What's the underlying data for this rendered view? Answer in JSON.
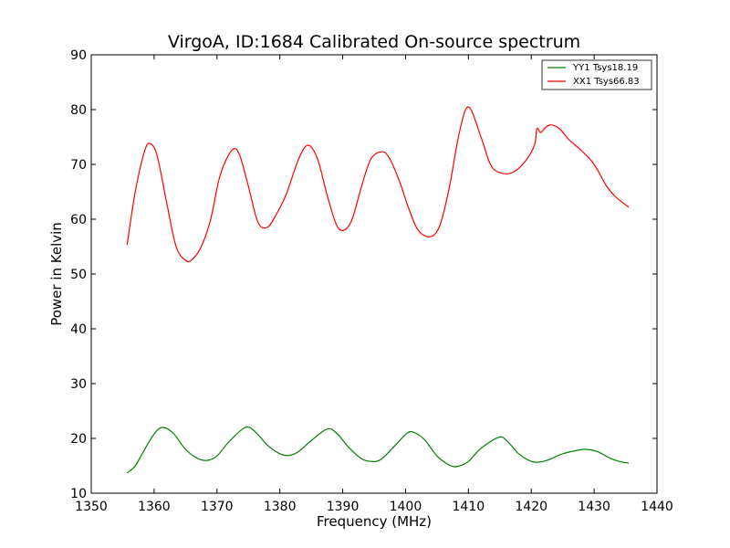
{
  "chart_data": {
    "type": "line",
    "title": "VirgoA, ID:1684 Calibrated On-source spectrum",
    "xlabel": "Frequency (MHz)",
    "ylabel": "Power in Kelvin",
    "xlim": [
      1350,
      1440
    ],
    "ylim": [
      10,
      90
    ],
    "xticks": [
      1350,
      1360,
      1370,
      1380,
      1390,
      1400,
      1410,
      1420,
      1430,
      1440
    ],
    "yticks": [
      10,
      20,
      30,
      40,
      50,
      60,
      70,
      80,
      90
    ],
    "grid": false,
    "legend_position": "top-right",
    "series": [
      {
        "name": "YY1 Tsys18.19",
        "color": "#008000",
        "x": [
          1355.7,
          1357,
          1358.5,
          1360,
          1361.3,
          1363,
          1365,
          1367,
          1368.5,
          1370,
          1372,
          1374.5,
          1376,
          1378,
          1380,
          1381.5,
          1383,
          1385,
          1387.5,
          1389,
          1391,
          1393,
          1394.5,
          1396,
          1398,
          1400.3,
          1401.5,
          1403,
          1405,
          1407,
          1408.3,
          1410,
          1412,
          1414.8,
          1416,
          1418,
          1420,
          1421.5,
          1423,
          1424.5,
          1426,
          1428.5,
          1430.5,
          1432.5,
          1434,
          1435.5
        ],
        "y": [
          13.7,
          15,
          18,
          20.8,
          22.0,
          21,
          18,
          16.3,
          16.0,
          16.8,
          19.5,
          22.0,
          21.3,
          18.8,
          17.2,
          16.9,
          17.6,
          19.6,
          21.7,
          21.0,
          18.3,
          16.3,
          15.8,
          16.1,
          18.3,
          21.0,
          21.0,
          19.8,
          16.8,
          15.1,
          14.9,
          15.8,
          18.2,
          20.2,
          19.7,
          17.2,
          15.8,
          15.7,
          16.2,
          17.0,
          17.5,
          18.0,
          17.6,
          16.4,
          15.8,
          15.5
        ]
      },
      {
        "name": "XX1 Tsys66.83",
        "color": "#ff0000",
        "x": [
          1355.7,
          1357,
          1358.5,
          1359.4,
          1360.5,
          1362,
          1363.5,
          1365,
          1366,
          1367.5,
          1369,
          1370.5,
          1372.3,
          1373.5,
          1375,
          1376.5,
          1378,
          1379.5,
          1381,
          1383,
          1384.5,
          1386,
          1387.5,
          1389,
          1390.2,
          1391.5,
          1393,
          1394.5,
          1396.3,
          1397.5,
          1399,
          1400.5,
          1402,
          1404,
          1405.5,
          1407,
          1408.5,
          1410,
          1412,
          1413.5,
          1415,
          1417,
          1419,
          1420.5,
          1420.9,
          1421.5,
          1422.3,
          1423.2,
          1424.5,
          1426,
          1428,
          1430,
          1432,
          1433.5,
          1435.5
        ],
        "y": [
          55.3,
          65,
          72.5,
          73.8,
          71.5,
          63,
          55,
          52.5,
          52.6,
          55,
          60,
          68,
          72.5,
          72,
          66,
          59.5,
          58.5,
          61,
          64.5,
          71,
          73.5,
          71,
          64.5,
          59,
          58,
          60,
          66,
          71,
          72.3,
          71,
          67,
          62,
          58,
          56.8,
          59,
          66,
          75.5,
          80.5,
          75,
          70,
          68.5,
          68.5,
          70.5,
          73.5,
          76.5,
          75.8,
          76.8,
          77.2,
          76.5,
          74.5,
          72.5,
          70,
          66,
          64,
          62.2
        ]
      }
    ]
  }
}
